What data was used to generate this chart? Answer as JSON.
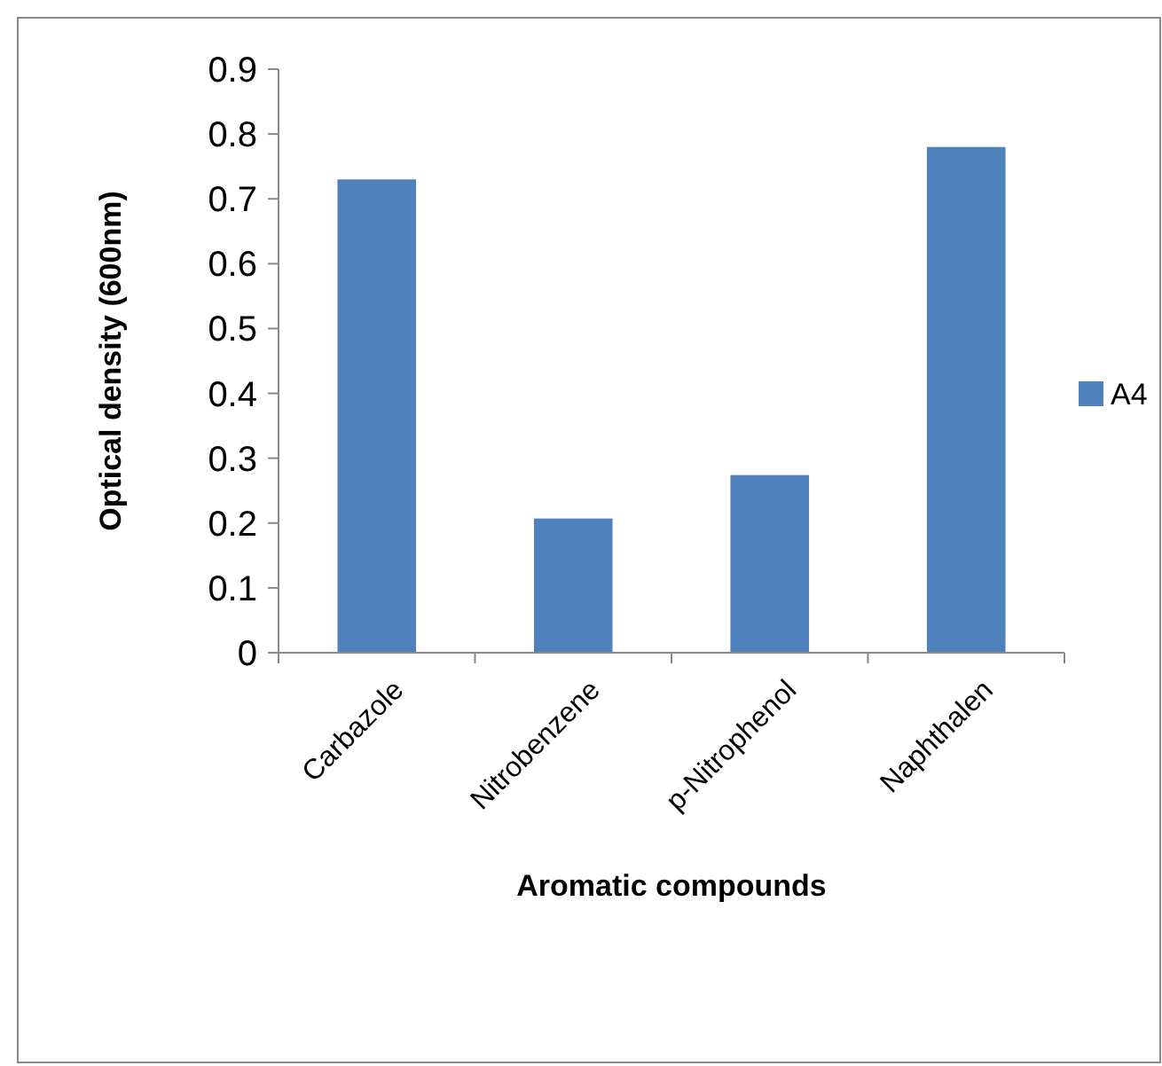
{
  "chart_data": {
    "type": "bar",
    "xlabel": "Aromatic compounds",
    "ylabel": "Optical density (600nm)",
    "categories": [
      "Carbazole",
      "Nitrobenzene",
      "p-Nitrophenol",
      "Naphthalen"
    ],
    "series": [
      {
        "name": "A4",
        "color": "#4f81bd",
        "values": [
          0.73,
          0.207,
          0.274,
          0.78
        ]
      }
    ],
    "ylim": [
      0,
      0.9
    ],
    "yticks": [
      0,
      0.1,
      0.2,
      0.3,
      0.4,
      0.5,
      0.6,
      0.7,
      0.8,
      0.9
    ],
    "grid": false,
    "legend": "right"
  }
}
